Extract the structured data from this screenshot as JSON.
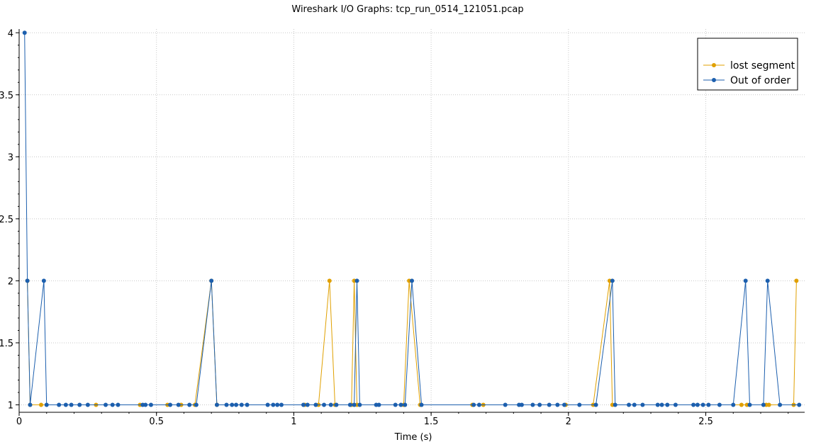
{
  "chart_data": {
    "type": "line",
    "title": "Wireshark I/O Graphs: tcp_run_0514_121051.pcap",
    "xlabel": "Time (s)",
    "ylabel": "",
    "xlim": [
      0,
      2.86
    ],
    "ylim": [
      0.94,
      4.03
    ],
    "xticks": [
      0,
      0.5,
      1,
      1.5,
      2,
      2.5
    ],
    "xtick_labels": [
      "0",
      "0.5",
      "1",
      "1.5",
      "2",
      "2.5"
    ],
    "yticks": [
      1,
      1.5,
      2,
      2.5,
      3,
      3.5,
      4
    ],
    "ytick_labels": [
      "1",
      "1.5",
      "2",
      "2.5",
      "3",
      "3.5",
      "4"
    ],
    "grid": true,
    "legend_position": "top-right",
    "series": [
      {
        "name": "lost segment",
        "color": "#e0a000",
        "points": [
          [
            0.03,
            2
          ],
          [
            0.04,
            1
          ],
          [
            0.08,
            1
          ],
          [
            0.28,
            1
          ],
          [
            0.44,
            1
          ],
          [
            0.54,
            1
          ],
          [
            0.59,
            1
          ],
          [
            0.64,
            1
          ],
          [
            0.7,
            2
          ],
          [
            0.72,
            1
          ],
          [
            1.04,
            1
          ],
          [
            1.09,
            1
          ],
          [
            1.13,
            2
          ],
          [
            1.15,
            1
          ],
          [
            1.21,
            1
          ],
          [
            1.22,
            2
          ],
          [
            1.23,
            1
          ],
          [
            1.4,
            1
          ],
          [
            1.42,
            2
          ],
          [
            1.46,
            1
          ],
          [
            1.65,
            1
          ],
          [
            1.69,
            1
          ],
          [
            1.99,
            1
          ],
          [
            2.09,
            1
          ],
          [
            2.15,
            2
          ],
          [
            2.16,
            1
          ],
          [
            2.63,
            1
          ],
          [
            2.65,
            1
          ],
          [
            2.72,
            1
          ],
          [
            2.73,
            1
          ],
          [
            2.82,
            1
          ],
          [
            2.83,
            2
          ]
        ]
      },
      {
        "name": "Out of order",
        "color": "#1c5fae",
        "points": [
          [
            0.02,
            4
          ],
          [
            0.03,
            2
          ],
          [
            0.04,
            1
          ],
          [
            0.09,
            2
          ],
          [
            0.1,
            1
          ],
          [
            0.145,
            1
          ],
          [
            0.17,
            1
          ],
          [
            0.19,
            1
          ],
          [
            0.22,
            1
          ],
          [
            0.25,
            1
          ],
          [
            0.315,
            1
          ],
          [
            0.34,
            1
          ],
          [
            0.36,
            1
          ],
          [
            0.45,
            1
          ],
          [
            0.46,
            1
          ],
          [
            0.48,
            1
          ],
          [
            0.55,
            1
          ],
          [
            0.58,
            1
          ],
          [
            0.62,
            1
          ],
          [
            0.645,
            1
          ],
          [
            0.7,
            2
          ],
          [
            0.72,
            1
          ],
          [
            0.755,
            1
          ],
          [
            0.775,
            1
          ],
          [
            0.79,
            1
          ],
          [
            0.81,
            1
          ],
          [
            0.83,
            1
          ],
          [
            0.905,
            1
          ],
          [
            0.925,
            1
          ],
          [
            0.94,
            1
          ],
          [
            0.955,
            1
          ],
          [
            1.035,
            1
          ],
          [
            1.05,
            1
          ],
          [
            1.08,
            1
          ],
          [
            1.11,
            1
          ],
          [
            1.135,
            1
          ],
          [
            1.155,
            1
          ],
          [
            1.205,
            1
          ],
          [
            1.22,
            1
          ],
          [
            1.23,
            2
          ],
          [
            1.24,
            1
          ],
          [
            1.3,
            1
          ],
          [
            1.31,
            1
          ],
          [
            1.37,
            1
          ],
          [
            1.39,
            1
          ],
          [
            1.405,
            1
          ],
          [
            1.43,
            2
          ],
          [
            1.465,
            1
          ],
          [
            1.655,
            1
          ],
          [
            1.675,
            1
          ],
          [
            1.77,
            1
          ],
          [
            1.82,
            1
          ],
          [
            1.83,
            1
          ],
          [
            1.87,
            1
          ],
          [
            1.895,
            1
          ],
          [
            1.93,
            1
          ],
          [
            1.96,
            1
          ],
          [
            1.985,
            1
          ],
          [
            2.04,
            1
          ],
          [
            2.1,
            1
          ],
          [
            2.16,
            2
          ],
          [
            2.17,
            1
          ],
          [
            2.22,
            1
          ],
          [
            2.24,
            1
          ],
          [
            2.27,
            1
          ],
          [
            2.325,
            1
          ],
          [
            2.34,
            1
          ],
          [
            2.36,
            1
          ],
          [
            2.39,
            1
          ],
          [
            2.455,
            1
          ],
          [
            2.47,
            1
          ],
          [
            2.49,
            1
          ],
          [
            2.51,
            1
          ],
          [
            2.55,
            1
          ],
          [
            2.6,
            1
          ],
          [
            2.645,
            2
          ],
          [
            2.66,
            1
          ],
          [
            2.71,
            1
          ],
          [
            2.725,
            2
          ],
          [
            2.77,
            1
          ],
          [
            2.84,
            1
          ]
        ]
      }
    ]
  }
}
